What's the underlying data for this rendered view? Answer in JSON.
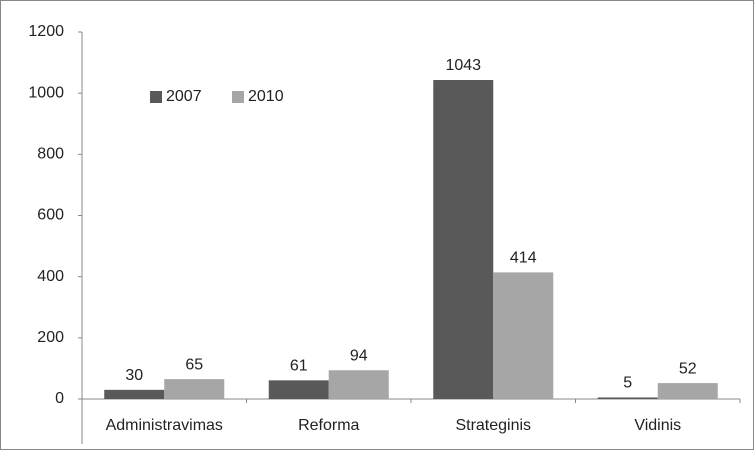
{
  "chart_data": {
    "type": "bar",
    "categories": [
      "Administravimas",
      "Reforma",
      "Strateginis",
      "Vidinis"
    ],
    "series": [
      {
        "name": "2007",
        "color": "#595959",
        "values": [
          30,
          61,
          1043,
          5
        ]
      },
      {
        "name": "2010",
        "color": "#a6a6a6",
        "values": [
          65,
          94,
          414,
          52
        ]
      }
    ],
    "ylim": [
      0,
      1200
    ],
    "yticks": [
      0,
      200,
      400,
      600,
      800,
      1000,
      1200
    ],
    "grid": false,
    "legend": "upper left"
  }
}
